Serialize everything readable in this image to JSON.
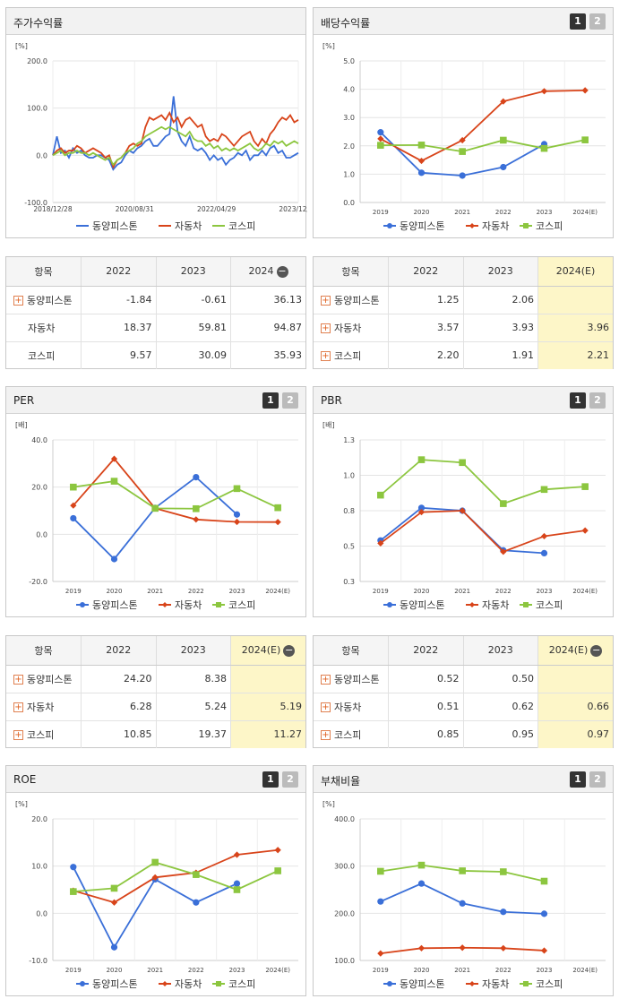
{
  "panels": [
    {
      "id": "p1",
      "title": "주가수익률",
      "buttons": []
    },
    {
      "id": "p2",
      "title": "배당수익률",
      "buttons": [
        "1",
        "2"
      ]
    },
    {
      "id": "p3",
      "title": "PER",
      "buttons": [
        "1",
        "2"
      ]
    },
    {
      "id": "p4",
      "title": "PBR",
      "buttons": [
        "1",
        "2"
      ]
    },
    {
      "id": "p5",
      "title": "ROE",
      "buttons": [
        "1",
        "2"
      ]
    },
    {
      "id": "p6",
      "title": "부채비율",
      "buttons": [
        "1",
        "2"
      ]
    }
  ],
  "legend": [
    "동양피스톤",
    "자동차",
    "코스피"
  ],
  "colors": {
    "s1": "#3a6fd8",
    "s2": "#d8441a",
    "s3": "#8cc63f"
  },
  "tables": [
    {
      "id": "t1",
      "head": [
        "항목",
        "2022",
        "2023",
        "2024"
      ],
      "head_minus": true,
      "rows": [
        {
          "plus": true,
          "cells": [
            "동양피스톤",
            "-1.84",
            "-0.61",
            "36.13"
          ]
        },
        {
          "plus": false,
          "cells": [
            "자동차",
            "18.37",
            "59.81",
            "94.87"
          ]
        },
        {
          "plus": false,
          "cells": [
            "코스피",
            "9.57",
            "30.09",
            "35.93"
          ]
        }
      ],
      "hl": false
    },
    {
      "id": "t2",
      "head": [
        "항목",
        "2022",
        "2023",
        "2024(E)"
      ],
      "head_minus": false,
      "rows": [
        {
          "plus": true,
          "cells": [
            "동양피스톤",
            "1.25",
            "2.06",
            ""
          ]
        },
        {
          "plus": true,
          "cells": [
            "자동차",
            "3.57",
            "3.93",
            "3.96"
          ]
        },
        {
          "plus": true,
          "cells": [
            "코스피",
            "2.20",
            "1.91",
            "2.21"
          ]
        }
      ],
      "hl": true
    },
    {
      "id": "t3",
      "head": [
        "항목",
        "2022",
        "2023",
        "2024(E)"
      ],
      "head_minus": true,
      "rows": [
        {
          "plus": true,
          "cells": [
            "동양피스톤",
            "24.20",
            "8.38",
            ""
          ]
        },
        {
          "plus": true,
          "cells": [
            "자동차",
            "6.28",
            "5.24",
            "5.19"
          ]
        },
        {
          "plus": true,
          "cells": [
            "코스피",
            "10.85",
            "19.37",
            "11.27"
          ]
        }
      ],
      "hl": true
    },
    {
      "id": "t4",
      "head": [
        "항목",
        "2022",
        "2023",
        "2024(E)"
      ],
      "head_minus": true,
      "rows": [
        {
          "plus": true,
          "cells": [
            "동양피스톤",
            "0.52",
            "0.50",
            ""
          ]
        },
        {
          "plus": true,
          "cells": [
            "자동차",
            "0.51",
            "0.62",
            "0.66"
          ]
        },
        {
          "plus": true,
          "cells": [
            "코스피",
            "0.85",
            "0.95",
            "0.97"
          ]
        }
      ],
      "hl": true
    }
  ],
  "chart_data": [
    {
      "id": "c1",
      "type": "line",
      "title": "주가수익률",
      "unit": "[%]",
      "ylim": [
        -100,
        200
      ],
      "yticks": [
        "200.0",
        "100.0",
        "0.0",
        "-100.0"
      ],
      "xticks": [
        "2018/12/28",
        "2020/08/31",
        "2022/04/29",
        "2023/12/28"
      ],
      "series": [
        {
          "name": "동양피스톤",
          "values": [
            0,
            40,
            5,
            10,
            -5,
            15,
            5,
            10,
            0,
            -5,
            -5,
            0,
            0,
            -5,
            -10,
            -30,
            -20,
            -15,
            0,
            10,
            5,
            15,
            20,
            30,
            35,
            20,
            20,
            30,
            40,
            45,
            125,
            50,
            30,
            20,
            40,
            15,
            10,
            15,
            5,
            -10,
            0,
            -10,
            -5,
            -20,
            -10,
            -5,
            5,
            0,
            10,
            -10,
            0,
            0,
            10,
            0,
            15,
            20,
            5,
            10,
            -5,
            -5,
            0,
            5
          ]
        },
        {
          "name": "자동차",
          "values": [
            0,
            10,
            15,
            5,
            10,
            10,
            20,
            15,
            5,
            10,
            15,
            10,
            5,
            -5,
            0,
            -25,
            -10,
            -5,
            5,
            20,
            25,
            20,
            25,
            60,
            80,
            75,
            80,
            85,
            75,
            90,
            70,
            80,
            60,
            75,
            80,
            70,
            60,
            65,
            40,
            30,
            35,
            30,
            45,
            40,
            30,
            20,
            30,
            40,
            45,
            50,
            30,
            20,
            35,
            25,
            45,
            55,
            70,
            80,
            75,
            85,
            70,
            75
          ]
        },
        {
          "name": "코스피",
          "values": [
            0,
            5,
            10,
            0,
            5,
            5,
            10,
            5,
            5,
            0,
            5,
            0,
            -5,
            -10,
            -5,
            -20,
            -10,
            -5,
            5,
            10,
            15,
            25,
            30,
            40,
            45,
            50,
            55,
            60,
            55,
            60,
            55,
            50,
            45,
            40,
            50,
            35,
            30,
            30,
            20,
            25,
            15,
            20,
            10,
            15,
            10,
            15,
            10,
            15,
            20,
            25,
            15,
            10,
            15,
            25,
            20,
            30,
            25,
            30,
            20,
            25,
            30,
            25
          ]
        }
      ]
    },
    {
      "id": "c2",
      "type": "line",
      "title": "배당수익률",
      "unit": "[%]",
      "ylim": [
        0,
        5
      ],
      "yticks": [
        "5.0",
        "4.0",
        "3.0",
        "2.0",
        "1.0",
        "0.0"
      ],
      "categories": [
        "2019",
        "2020",
        "2021",
        "2022",
        "2023",
        "2024(E)"
      ],
      "series": [
        {
          "name": "동양피스톤",
          "values": [
            2.48,
            1.05,
            0.95,
            1.25,
            2.06,
            null
          ]
        },
        {
          "name": "자동차",
          "values": [
            2.25,
            1.47,
            2.2,
            3.57,
            3.93,
            3.96
          ]
        },
        {
          "name": "코스피",
          "values": [
            2.02,
            2.03,
            1.8,
            2.2,
            1.91,
            2.21
          ]
        }
      ]
    },
    {
      "id": "c3",
      "type": "line",
      "title": "PER",
      "unit": "[배]",
      "ylim": [
        -20,
        40
      ],
      "yticks": [
        "40.0",
        "20.0",
        "0.0",
        "-20.0"
      ],
      "categories": [
        "2019",
        "2020",
        "2021",
        "2022",
        "2023",
        "2024(E)"
      ],
      "series": [
        {
          "name": "동양피스톤",
          "values": [
            6.8,
            -10.5,
            11.2,
            24.2,
            8.38,
            null
          ]
        },
        {
          "name": "자동차",
          "values": [
            12.2,
            32.0,
            11.0,
            6.28,
            5.24,
            5.19
          ]
        },
        {
          "name": "코스피",
          "values": [
            20.0,
            22.5,
            11.0,
            10.85,
            19.37,
            11.27
          ]
        }
      ]
    },
    {
      "id": "c4",
      "type": "line",
      "title": "PBR",
      "unit": "[배]",
      "ylim": [
        0.3,
        1.3
      ],
      "yticks": [
        "1.3",
        "1.0",
        "0.8",
        "0.5",
        "0.3"
      ],
      "categories": [
        "2019",
        "2020",
        "2021",
        "2022",
        "2023",
        "2024(E)"
      ],
      "series": [
        {
          "name": "동양피스톤",
          "values": [
            0.59,
            0.82,
            0.8,
            0.52,
            0.5,
            null
          ]
        },
        {
          "name": "자동차",
          "values": [
            0.57,
            0.79,
            0.8,
            0.51,
            0.62,
            0.66
          ]
        },
        {
          "name": "코스피",
          "values": [
            0.91,
            1.16,
            1.14,
            0.85,
            0.95,
            0.97
          ]
        }
      ]
    },
    {
      "id": "c5",
      "type": "line",
      "title": "ROE",
      "unit": "[%]",
      "ylim": [
        -10,
        20
      ],
      "yticks": [
        "20.0",
        "10.0",
        "0.0",
        "-10.0"
      ],
      "categories": [
        "2019",
        "2020",
        "2021",
        "2022",
        "2023",
        "2024(E)"
      ],
      "series": [
        {
          "name": "동양피스톤",
          "values": [
            9.8,
            -7.2,
            7.2,
            2.3,
            6.3,
            null
          ]
        },
        {
          "name": "자동차",
          "values": [
            4.8,
            2.3,
            7.6,
            8.6,
            12.4,
            13.4
          ]
        },
        {
          "name": "코스피",
          "values": [
            4.6,
            5.3,
            10.8,
            8.2,
            5.0,
            9.0
          ]
        }
      ]
    },
    {
      "id": "c6",
      "type": "line",
      "title": "부채비율",
      "unit": "[%]",
      "ylim": [
        100,
        400
      ],
      "yticks": [
        "400.0",
        "300.0",
        "200.0",
        "100.0"
      ],
      "categories": [
        "2019",
        "2020",
        "2021",
        "2022",
        "2023",
        "2024(E)"
      ],
      "series": [
        {
          "name": "동양피스톤",
          "values": [
            225,
            263,
            221,
            203,
            199,
            null
          ]
        },
        {
          "name": "자동차",
          "values": [
            115,
            126,
            127,
            126,
            121,
            null
          ]
        },
        {
          "name": "코스피",
          "values": [
            289,
            302,
            290,
            288,
            268,
            null
          ]
        }
      ]
    }
  ]
}
